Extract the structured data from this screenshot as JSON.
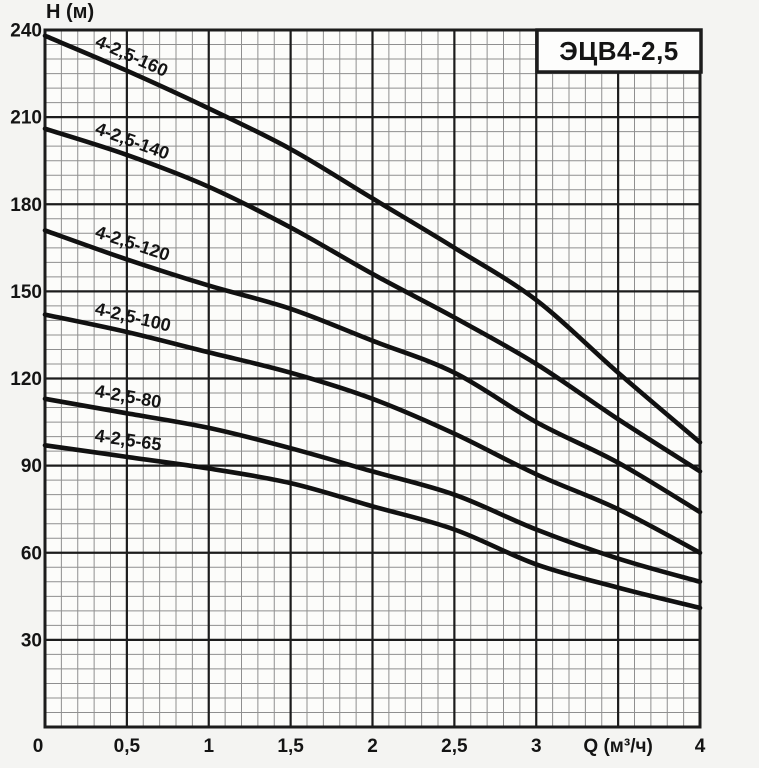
{
  "chart_data": {
    "type": "line",
    "title": "ЭЦВ4-2,5",
    "ylabel": "Н (м)",
    "xlabel": "Q (м³/ч)",
    "xlim": [
      0,
      4
    ],
    "ylim": [
      0,
      240
    ],
    "x_major_step": 0.5,
    "x_minor_step": 0.1,
    "y_major_step": 30,
    "y_minor_step": 5,
    "grid": "on",
    "legend_position": "labels-on-curves",
    "x": [
      0,
      0.5,
      1,
      1.5,
      2,
      2.5,
      3,
      3.5,
      4
    ],
    "series": [
      {
        "name": "4-2,5-160",
        "values": [
          238,
          226,
          213,
          199,
          182,
          165,
          147,
          122,
          98
        ]
      },
      {
        "name": "4-2,5-140",
        "values": [
          206,
          197,
          186,
          172,
          156,
          141,
          125,
          106,
          88
        ]
      },
      {
        "name": "4-2,5-120",
        "values": [
          171,
          161,
          152,
          144,
          133,
          122,
          105,
          91,
          74
        ]
      },
      {
        "name": "4-2,5-100",
        "values": [
          142,
          136,
          129,
          122,
          113,
          101,
          87,
          75,
          60
        ]
      },
      {
        "name": "4-2,5-80",
        "values": [
          113,
          108,
          103,
          96,
          88,
          80,
          68,
          58,
          50
        ]
      },
      {
        "name": "4-2,5-65",
        "values": [
          97,
          93,
          89,
          84,
          76,
          68,
          56,
          48,
          41
        ]
      }
    ],
    "x_tick_labels": [
      "0",
      "0,5",
      "1",
      "1,5",
      "2",
      "2,5",
      "3",
      "Q (м³/ч)",
      "4"
    ],
    "y_tick_labels": [
      "240",
      "210",
      "180",
      "150",
      "120",
      "90",
      "60",
      "30"
    ]
  },
  "colors": {
    "paper": "#f4f4f2",
    "plot_background": "#fcfcfa",
    "grid_minor": "#8f8f8f",
    "grid_major": "#1c1c1c",
    "ink": "#141414",
    "curve": "#111111",
    "title_box_fill": "#fdfdfc"
  }
}
